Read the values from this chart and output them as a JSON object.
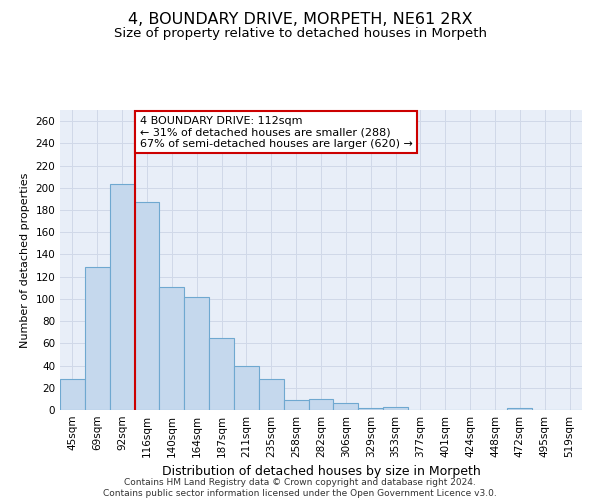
{
  "title": "4, BOUNDARY DRIVE, MORPETH, NE61 2RX",
  "subtitle": "Size of property relative to detached houses in Morpeth",
  "xlabel": "Distribution of detached houses by size in Morpeth",
  "ylabel": "Number of detached properties",
  "categories": [
    "45sqm",
    "69sqm",
    "92sqm",
    "116sqm",
    "140sqm",
    "164sqm",
    "187sqm",
    "211sqm",
    "235sqm",
    "258sqm",
    "282sqm",
    "306sqm",
    "329sqm",
    "353sqm",
    "377sqm",
    "401sqm",
    "424sqm",
    "448sqm",
    "472sqm",
    "495sqm",
    "519sqm"
  ],
  "values": [
    28,
    129,
    203,
    187,
    111,
    102,
    65,
    40,
    28,
    9,
    10,
    6,
    2,
    3,
    0,
    0,
    0,
    0,
    2,
    0,
    0
  ],
  "bar_color": "#c5d8ed",
  "bar_edge_color": "#6fa8d0",
  "property_line_index": 3,
  "property_line_color": "#cc0000",
  "annotation_text": "4 BOUNDARY DRIVE: 112sqm\n← 31% of detached houses are smaller (288)\n67% of semi-detached houses are larger (620) →",
  "annotation_box_color": "#ffffff",
  "annotation_box_edge_color": "#cc0000",
  "grid_color": "#d0d8e8",
  "background_color": "#e8eef8",
  "footer_line1": "Contains HM Land Registry data © Crown copyright and database right 2024.",
  "footer_line2": "Contains public sector information licensed under the Open Government Licence v3.0.",
  "ylim": [
    0,
    270
  ],
  "yticks": [
    0,
    20,
    40,
    60,
    80,
    100,
    120,
    140,
    160,
    180,
    200,
    220,
    240,
    260
  ],
  "title_fontsize": 11.5,
  "subtitle_fontsize": 9.5,
  "xlabel_fontsize": 9,
  "ylabel_fontsize": 8,
  "tick_fontsize": 7.5,
  "annotation_fontsize": 8,
  "footer_fontsize": 6.5
}
